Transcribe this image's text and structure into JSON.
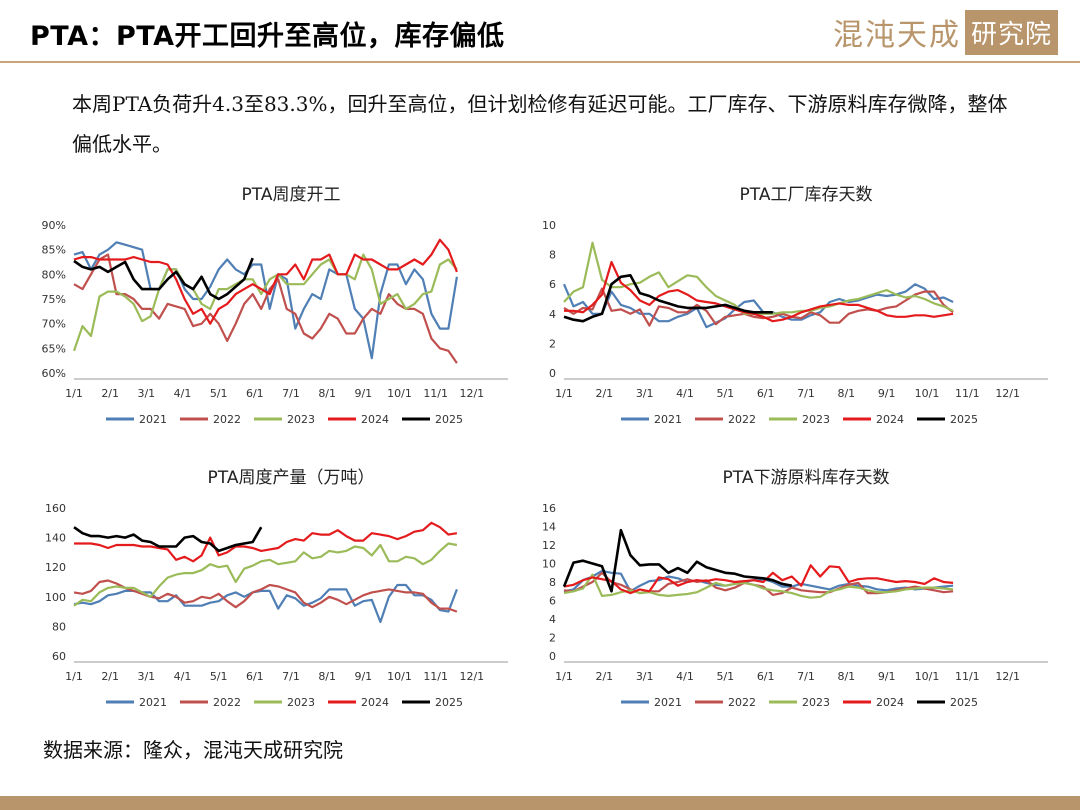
{
  "slide": {
    "title": "PTA：PTA开工回升至高位，库存偏低",
    "logo_text": "混沌天成",
    "logo_box_text": "研究院",
    "summary": "本周PTA负荷升4.3至83.3%，回升至高位，但计划检修有延迟可能。工厂库存、下游原料库存微降，整体偏低水平。",
    "source": "数据来源：隆众，混沌天成研究院",
    "accent_color": "#c6a678"
  },
  "chart_data": [
    {
      "type": "line",
      "title": "PTA周度开工",
      "xlabel": "",
      "ylabel": "",
      "x_ticks": [
        "1/1",
        "2/1",
        "3/1",
        "4/1",
        "5/1",
        "6/1",
        "7/1",
        "8/1",
        "9/1",
        "10/1",
        "11/1",
        "12/1"
      ],
      "y_ticks": [
        "60%",
        "65%",
        "70%",
        "75%",
        "80%",
        "85%",
        "90%"
      ],
      "ylim": [
        60,
        90
      ],
      "legend": "bottom",
      "series": [
        {
          "name": "2021",
          "color": "#4f7fb5",
          "values": [
            84,
            84.5,
            81,
            84,
            85,
            86.5,
            86,
            85.5,
            85,
            77,
            77,
            81,
            81,
            77,
            75,
            75,
            77.5,
            81,
            83,
            81,
            80,
            82,
            82,
            73,
            80,
            79,
            69,
            73,
            76,
            75,
            81,
            80,
            80,
            73,
            71,
            63,
            76,
            82,
            82,
            78,
            81,
            79,
            72,
            69,
            69,
            79.5
          ]
        },
        {
          "name": "2022",
          "color": "#c0504d",
          "values": [
            78,
            77,
            80,
            83,
            84,
            76,
            76,
            75,
            73,
            73,
            71,
            74,
            73.5,
            73,
            69.5,
            70,
            72,
            70,
            66.5,
            70,
            74,
            76,
            73,
            77,
            79,
            73,
            72,
            68,
            67,
            69,
            72,
            71,
            68,
            68,
            71,
            73,
            72,
            76,
            74,
            73,
            73,
            72,
            67,
            65,
            64.5,
            62
          ]
        },
        {
          "name": "2023",
          "color": "#9bbb59",
          "values": [
            64.5,
            69.5,
            67.5,
            75.5,
            76.5,
            76.5,
            75.5,
            74,
            70.5,
            71.5,
            77,
            81,
            81,
            78,
            77,
            74,
            73,
            77,
            77,
            78,
            79,
            79,
            76,
            79,
            80,
            78,
            78,
            78,
            80,
            82,
            83,
            80,
            80,
            79,
            84,
            81,
            74,
            75,
            76,
            73,
            74,
            76,
            76.5,
            82,
            83,
            81
          ]
        },
        {
          "name": "2024",
          "color": "#e41a1c",
          "values": [
            83,
            83.5,
            83.5,
            83,
            83,
            83,
            83,
            83.5,
            83,
            82.5,
            82.5,
            82,
            79,
            75,
            72,
            73,
            70,
            73,
            74,
            76,
            77,
            78,
            77,
            76,
            80,
            80,
            82,
            79,
            83,
            83,
            84,
            80,
            80,
            84,
            83,
            83,
            82,
            81,
            81,
            82,
            83,
            82,
            84,
            87,
            85,
            80.5
          ]
        },
        {
          "name": "2025",
          "color": "#000000",
          "values": [
            82.7,
            81.5,
            81,
            81.5,
            80.5,
            81.5,
            82.5,
            79,
            77,
            77,
            77,
            79,
            80.5,
            78,
            77,
            79.5,
            76,
            75,
            76,
            77.5,
            79,
            83.3
          ]
        }
      ]
    },
    {
      "type": "line",
      "title": "PTA工厂库存天数",
      "xlabel": "",
      "ylabel": "",
      "x_ticks": [
        "1/1",
        "2/1",
        "3/1",
        "4/1",
        "5/1",
        "6/1",
        "7/1",
        "8/1",
        "9/1",
        "10/1",
        "11/1",
        "12/1"
      ],
      "y_ticks": [
        "0",
        "2",
        "4",
        "6",
        "8",
        "10"
      ],
      "ylim": [
        0,
        10
      ],
      "legend": "bottom",
      "series": [
        {
          "name": "2021",
          "color": "#4f7fb5",
          "values": [
            6,
            4.5,
            4.8,
            4,
            4,
            5.5,
            4.6,
            4.4,
            4,
            4,
            3.5,
            3.5,
            3.8,
            4,
            4.4,
            3.1,
            3.4,
            3.7,
            4.3,
            4.8,
            4.9,
            4.1,
            4.1,
            3.8,
            3.6,
            3.6,
            3.9,
            4.1,
            4.8,
            5,
            4.8,
            4.9,
            5.1,
            5.3,
            5.2,
            5.3,
            5.5,
            6,
            5.7,
            5,
            5.1,
            4.8
          ]
        },
        {
          "name": "2022",
          "color": "#c0504d",
          "values": [
            4.4,
            4,
            4.4,
            4.3,
            5.7,
            4.2,
            4.3,
            4,
            4.3,
            3.2,
            4.5,
            4.4,
            4.1,
            4.1,
            4.6,
            4.2,
            3.3,
            3.8,
            3.9,
            4,
            3.8,
            3.7,
            3.8,
            4,
            3.8,
            3.7,
            4.1,
            3.9,
            3.4,
            3.4,
            4,
            4.2,
            4.3,
            4.2,
            4.4,
            4.5,
            4.9,
            5.3,
            5.5,
            5.5,
            4.6,
            4.1
          ]
        },
        {
          "name": "2023",
          "color": "#9bbb59",
          "values": [
            4.8,
            5.5,
            5.8,
            8.8,
            6.3,
            5.8,
            5.8,
            6,
            6.1,
            6.5,
            6.8,
            5.8,
            6.2,
            6.6,
            6.5,
            5.8,
            5.2,
            4.9,
            4.6,
            4,
            4,
            4,
            4,
            4.1,
            4.1,
            4.2,
            4.2,
            4.4,
            4.5,
            4.7,
            4.9,
            5,
            5.2,
            5.4,
            5.6,
            5.3,
            5.1,
            5.2,
            5,
            4.7,
            4.5,
            4.2
          ]
        },
        {
          "name": "2024",
          "color": "#e41a1c",
          "values": [
            4.2,
            4.2,
            4.1,
            4.6,
            5.3,
            7.5,
            6.1,
            5.6,
            4.9,
            4.6,
            5.2,
            5.5,
            5.6,
            5.3,
            4.9,
            4.8,
            4.7,
            4.5,
            4.3,
            4.1,
            4,
            3.8,
            3.5,
            3.6,
            3.8,
            4.1,
            4.3,
            4.5,
            4.6,
            4.7,
            4.6,
            4.6,
            4.4,
            4.2,
            3.9,
            3.8,
            3.8,
            3.9,
            3.9,
            3.8,
            3.9,
            4
          ]
        },
        {
          "name": "2025",
          "color": "#000000",
          "values": [
            3.8,
            3.6,
            3.5,
            3.8,
            4,
            6,
            6.5,
            6.6,
            5.4,
            5.2,
            4.9,
            4.7,
            4.5,
            4.4,
            4.4,
            4.4,
            4.5,
            4.6,
            4.4,
            4.2,
            4.1,
            4.1,
            4.1
          ]
        }
      ]
    },
    {
      "type": "line",
      "title": "PTA周度产量（万吨）",
      "xlabel": "",
      "ylabel": "",
      "x_ticks": [
        "1/1",
        "2/1",
        "3/1",
        "4/1",
        "5/1",
        "6/1",
        "7/1",
        "8/1",
        "9/1",
        "10/1",
        "11/1",
        "12/1"
      ],
      "y_ticks": [
        "60",
        "80",
        "100",
        "120",
        "140",
        "160"
      ],
      "ylim": [
        60,
        160
      ],
      "legend": "bottom",
      "series": [
        {
          "name": "2021",
          "color": "#4f7fb5",
          "values": [
            95,
            96,
            95,
            97,
            101,
            102,
            104,
            104,
            103,
            103,
            97,
            97,
            101,
            94,
            94,
            94,
            96,
            97,
            101,
            103,
            100,
            103,
            104,
            104,
            92,
            101,
            99,
            94,
            96,
            99,
            105,
            105,
            105,
            94,
            97,
            98,
            83,
            100,
            108,
            108,
            101,
            101,
            98,
            91,
            90,
            105
          ]
        },
        {
          "name": "2022",
          "color": "#c0504d",
          "values": [
            103,
            102,
            104,
            110,
            111,
            109,
            106,
            104,
            102,
            100,
            99,
            102,
            100,
            96,
            97,
            100,
            99,
            102,
            97,
            93,
            97,
            103,
            105,
            108,
            107,
            105,
            103,
            96,
            93,
            96,
            100,
            98,
            95,
            98,
            101,
            103,
            104,
            105,
            104,
            103,
            103,
            102,
            96,
            92,
            92,
            90
          ]
        },
        {
          "name": "2023",
          "color": "#9bbb59",
          "values": [
            94,
            98,
            97,
            103,
            106,
            107,
            106,
            106,
            103,
            100,
            107,
            113,
            115,
            116,
            116,
            118,
            122,
            120,
            121,
            110,
            119,
            121,
            124,
            125,
            122,
            123,
            124,
            130,
            126,
            127,
            131,
            130,
            131,
            134,
            133,
            128,
            135,
            124,
            124,
            127,
            126,
            122,
            125,
            131,
            136,
            135
          ]
        },
        {
          "name": "2024",
          "color": "#e41a1c",
          "values": [
            136,
            136,
            136,
            135,
            133,
            135,
            135,
            135,
            134,
            134,
            133,
            132,
            125,
            127,
            124,
            128,
            140,
            128,
            130,
            134,
            134,
            133,
            131,
            132,
            133,
            137,
            139,
            138,
            143,
            142,
            142,
            145,
            141,
            138,
            138,
            143,
            142,
            141,
            139,
            141,
            144,
            145,
            150,
            147,
            142,
            143
          ]
        },
        {
          "name": "2025",
          "color": "#000000",
          "values": [
            147,
            143,
            141,
            141,
            140,
            141,
            140,
            142,
            138,
            137,
            134,
            134,
            134,
            140,
            141,
            137,
            136,
            131,
            133,
            135,
            136,
            137,
            147
          ]
        }
      ]
    },
    {
      "type": "line",
      "title": "PTA下游原料库存天数",
      "xlabel": "",
      "ylabel": "",
      "x_ticks": [
        "1/1",
        "2/1",
        "3/1",
        "4/1",
        "5/1",
        "6/1",
        "7/1",
        "8/1",
        "9/1",
        "10/1",
        "11/1",
        "12/1"
      ],
      "y_ticks": [
        "0",
        "2",
        "4",
        "6",
        "8",
        "10",
        "12",
        "14",
        "16"
      ],
      "ylim": [
        0,
        16
      ],
      "legend": "bottom",
      "series": [
        {
          "name": "2021",
          "color": "#4f7fb5",
          "values": [
            7,
            7.2,
            8.2,
            8.6,
            9.2,
            9,
            8.9,
            7,
            7.6,
            8.1,
            8.2,
            8.6,
            8.4,
            8,
            8.2,
            7.9,
            7.7,
            7.6,
            7.8,
            8,
            8.2,
            8.3,
            8,
            7.5,
            7.5,
            7.8,
            7.6,
            7.4,
            7.2,
            7.6,
            7.8,
            7.6,
            7.5,
            7.2,
            7.1,
            7.3,
            7.4,
            7.2,
            7.3,
            7.4,
            7.5,
            7.6
          ]
        },
        {
          "name": "2022",
          "color": "#c0504d",
          "values": [
            7.1,
            7,
            7.5,
            8,
            9,
            8,
            7.7,
            7.2,
            6.8,
            7,
            7,
            7.8,
            8,
            8.3,
            8,
            8.2,
            7.4,
            7.1,
            7.4,
            7.9,
            7.7,
            7.5,
            6.6,
            6.8,
            7.4,
            7.1,
            7,
            6.9,
            6.9,
            7.3,
            7.7,
            7.9,
            6.8,
            6.8,
            6.9,
            7.1,
            7.3,
            7.5,
            7.3,
            7.1,
            6.9,
            7
          ]
        },
        {
          "name": "2023",
          "color": "#9bbb59",
          "values": [
            6.8,
            7,
            7.3,
            8.8,
            6.5,
            6.6,
            6.9,
            7.1,
            6.8,
            6.9,
            6.6,
            6.5,
            6.6,
            6.7,
            6.9,
            7.4,
            7.9,
            7.6,
            7.8,
            7.9,
            7.7,
            7.3,
            7.1,
            7,
            6.8,
            6.5,
            6.3,
            6.4,
            7,
            7.2,
            7.5,
            7.4,
            7.1,
            6.9,
            6.9,
            7,
            7.2,
            7.3,
            7.4,
            7.4,
            7.3,
            7.2
          ]
        },
        {
          "name": "2024",
          "color": "#e41a1c",
          "values": [
            7.5,
            7.7,
            8.2,
            8.5,
            8.3,
            8.1,
            7.2,
            6.8,
            7.2,
            7,
            8.5,
            8.3,
            7.6,
            8,
            8.2,
            8.1,
            8.3,
            8.2,
            8,
            8.1,
            8.2,
            8,
            9,
            8.2,
            8.6,
            7.6,
            9.8,
            8.6,
            9.7,
            9.6,
            8,
            8.3,
            8.4,
            8.4,
            8.2,
            8,
            8.1,
            8,
            7.8,
            8.4,
            8,
            7.9
          ]
        },
        {
          "name": "2025",
          "color": "#000000",
          "values": [
            7.5,
            10.1,
            10.3,
            10,
            9.7,
            7,
            13.6,
            10.9,
            9.8,
            9.9,
            9.9,
            9,
            9.5,
            9,
            10.2,
            9.6,
            9.3,
            9,
            8.9,
            8.6,
            8.5,
            8.4,
            8.2,
            7.8,
            7.6
          ]
        }
      ]
    }
  ]
}
